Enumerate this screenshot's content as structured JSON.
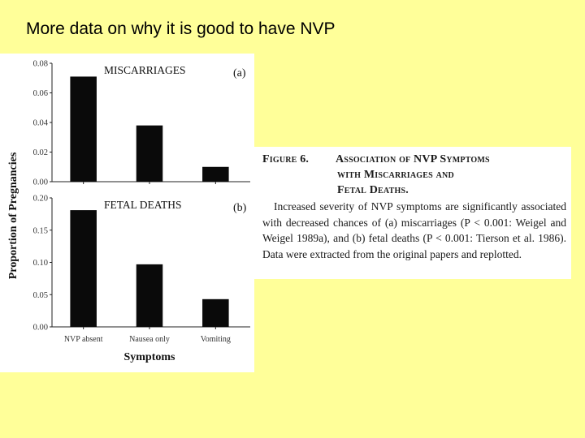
{
  "slide": {
    "title": "More data on why it is good to have NVP"
  },
  "chart_data": [
    {
      "type": "bar",
      "panel_label": "(a)",
      "title": "MISCARRIAGES",
      "categories": [
        "NVP absent",
        "Nausea only",
        "Vomiting"
      ],
      "values": [
        0.071,
        0.038,
        0.01
      ],
      "ylim": [
        0,
        0.08
      ],
      "yticks": [
        "0.00",
        "0.02",
        "0.04",
        "0.06",
        "0.08"
      ],
      "ytick_values": [
        0,
        0.02,
        0.04,
        0.06,
        0.08
      ],
      "bar_color": "#0a0a0a"
    },
    {
      "type": "bar",
      "panel_label": "(b)",
      "title": "FETAL DEATHS",
      "categories": [
        "NVP absent",
        "Nausea only",
        "Vomiting"
      ],
      "values": [
        0.181,
        0.097,
        0.043
      ],
      "ylim": [
        0,
        0.2
      ],
      "yticks": [
        "0.00",
        "0.05",
        "0.10",
        "0.15",
        "0.20"
      ],
      "ytick_values": [
        0,
        0.05,
        0.1,
        0.15,
        0.2
      ],
      "xticks": [
        "NVP absent",
        "Nausea only",
        "Vomiting"
      ],
      "bar_color": "#0a0a0a"
    }
  ],
  "figure": {
    "ylabel": "Proportion of Pregnancies",
    "xlabel": "Symptoms"
  },
  "caption": {
    "label": "Figure 6.",
    "heading_lines": [
      "Association of NVP Symptoms",
      "with Miscarriages and",
      "Fetal Deaths."
    ],
    "body": "Increased severity of NVP symptoms are significantly associated with decreased chances of (a) miscarriages (P < 0.001: Weigel and Weigel 1989a), and (b) fetal deaths (P < 0.001: Tierson et al. 1986). Data were extracted from the original papers and replotted."
  },
  "colors": {
    "background": "#ffff99",
    "panel": "#ffffff",
    "bars": "#0a0a0a"
  }
}
